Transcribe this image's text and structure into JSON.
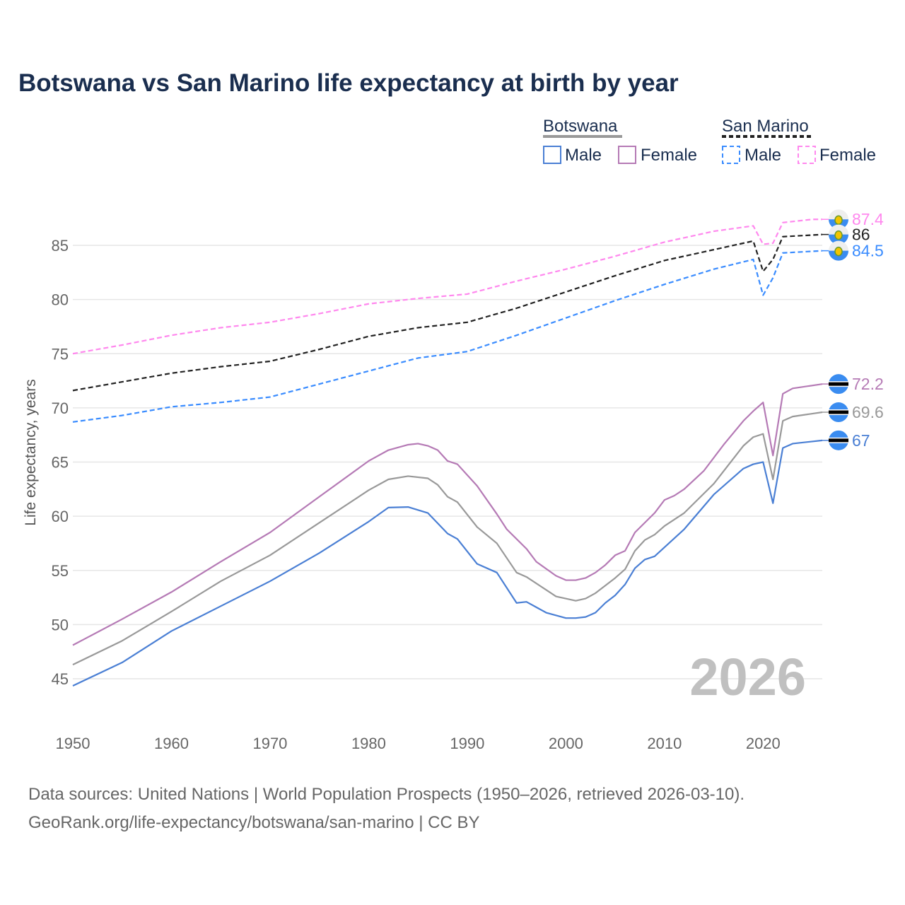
{
  "chart_data": {
    "type": "line",
    "title": "Botswana vs San Marino life expectancy at birth by year",
    "ylabel": "Life expectancy, years",
    "xlabel": "",
    "xlim": [
      1950,
      2026
    ],
    "ylim": [
      42,
      89
    ],
    "yticks": [
      45,
      50,
      55,
      60,
      65,
      70,
      75,
      80,
      85
    ],
    "xticks": [
      1950,
      1960,
      1970,
      1980,
      1990,
      2000,
      2010,
      2020
    ],
    "grid": true,
    "watermark_year": "2026",
    "legend": {
      "placement": "top-right",
      "groups": [
        {
          "name": "Botswana",
          "items": [
            "Male",
            "Female"
          ]
        },
        {
          "name": "San Marino",
          "items": [
            "Male",
            "Female"
          ]
        }
      ]
    },
    "series": [
      {
        "name": "San Marino Female",
        "color": "#ff88ee",
        "dash": true,
        "end_label": "87.4",
        "flag": "san-marino",
        "points": [
          [
            1950,
            75.0
          ],
          [
            1955,
            75.8
          ],
          [
            1960,
            76.7
          ],
          [
            1965,
            77.4
          ],
          [
            1970,
            77.9
          ],
          [
            1975,
            78.7
          ],
          [
            1980,
            79.6
          ],
          [
            1985,
            80.1
          ],
          [
            1990,
            80.5
          ],
          [
            1995,
            81.7
          ],
          [
            2000,
            82.8
          ],
          [
            2005,
            84.0
          ],
          [
            2010,
            85.3
          ],
          [
            2015,
            86.3
          ],
          [
            2019,
            86.8
          ],
          [
            2020,
            85.1
          ],
          [
            2021,
            85.2
          ],
          [
            2022,
            87.1
          ],
          [
            2025,
            87.4
          ],
          [
            2026,
            87.4
          ]
        ]
      },
      {
        "name": "San Marino",
        "color": "#222222",
        "dash": true,
        "end_label": "86",
        "flag": "san-marino",
        "points": [
          [
            1950,
            71.6
          ],
          [
            1955,
            72.4
          ],
          [
            1960,
            73.2
          ],
          [
            1965,
            73.8
          ],
          [
            1970,
            74.3
          ],
          [
            1975,
            75.4
          ],
          [
            1980,
            76.6
          ],
          [
            1985,
            77.4
          ],
          [
            1990,
            77.9
          ],
          [
            1995,
            79.2
          ],
          [
            2000,
            80.7
          ],
          [
            2005,
            82.2
          ],
          [
            2010,
            83.6
          ],
          [
            2015,
            84.6
          ],
          [
            2019,
            85.4
          ],
          [
            2020,
            82.6
          ],
          [
            2021,
            83.7
          ],
          [
            2022,
            85.8
          ],
          [
            2026,
            86.0
          ]
        ]
      },
      {
        "name": "San Marino Male",
        "color": "#3a8cff",
        "dash": true,
        "end_label": "84.5",
        "flag": "san-marino",
        "points": [
          [
            1950,
            68.7
          ],
          [
            1955,
            69.3
          ],
          [
            1960,
            70.1
          ],
          [
            1965,
            70.5
          ],
          [
            1970,
            71.0
          ],
          [
            1975,
            72.2
          ],
          [
            1980,
            73.4
          ],
          [
            1985,
            74.6
          ],
          [
            1990,
            75.2
          ],
          [
            1995,
            76.7
          ],
          [
            2000,
            78.3
          ],
          [
            2005,
            79.9
          ],
          [
            2010,
            81.4
          ],
          [
            2015,
            82.8
          ],
          [
            2019,
            83.7
          ],
          [
            2020,
            80.4
          ],
          [
            2021,
            82.0
          ],
          [
            2022,
            84.3
          ],
          [
            2026,
            84.5
          ]
        ]
      },
      {
        "name": "Botswana Female",
        "color": "#b57ab5",
        "dash": false,
        "end_label": "72.2",
        "flag": "botswana",
        "points": [
          [
            1950,
            48.1
          ],
          [
            1955,
            50.5
          ],
          [
            1960,
            53.0
          ],
          [
            1965,
            55.8
          ],
          [
            1970,
            58.5
          ],
          [
            1975,
            61.8
          ],
          [
            1980,
            65.1
          ],
          [
            1982,
            66.1
          ],
          [
            1984,
            66.6
          ],
          [
            1985,
            66.7
          ],
          [
            1986,
            66.5
          ],
          [
            1987,
            66.1
          ],
          [
            1988,
            65.1
          ],
          [
            1989,
            64.8
          ],
          [
            1991,
            62.8
          ],
          [
            1993,
            60.2
          ],
          [
            1994,
            58.8
          ],
          [
            1996,
            57.0
          ],
          [
            1997,
            55.8
          ],
          [
            1999,
            54.5
          ],
          [
            2000,
            54.1
          ],
          [
            2001,
            54.1
          ],
          [
            2002,
            54.3
          ],
          [
            2003,
            54.8
          ],
          [
            2004,
            55.5
          ],
          [
            2005,
            56.4
          ],
          [
            2006,
            56.8
          ],
          [
            2007,
            58.5
          ],
          [
            2009,
            60.3
          ],
          [
            2010,
            61.5
          ],
          [
            2011,
            61.9
          ],
          [
            2012,
            62.5
          ],
          [
            2014,
            64.2
          ],
          [
            2016,
            66.6
          ],
          [
            2018,
            68.8
          ],
          [
            2019,
            69.7
          ],
          [
            2020,
            70.5
          ],
          [
            2021,
            65.6
          ],
          [
            2022,
            71.3
          ],
          [
            2023,
            71.8
          ],
          [
            2026,
            72.2
          ]
        ]
      },
      {
        "name": "Botswana",
        "color": "#999999",
        "dash": false,
        "end_label": "69.6",
        "flag": "botswana",
        "points": [
          [
            1950,
            46.3
          ],
          [
            1955,
            48.5
          ],
          [
            1960,
            51.2
          ],
          [
            1965,
            54.0
          ],
          [
            1970,
            56.4
          ],
          [
            1975,
            59.4
          ],
          [
            1980,
            62.4
          ],
          [
            1982,
            63.4
          ],
          [
            1984,
            63.7
          ],
          [
            1986,
            63.5
          ],
          [
            1987,
            62.9
          ],
          [
            1988,
            61.8
          ],
          [
            1989,
            61.3
          ],
          [
            1991,
            59.0
          ],
          [
            1993,
            57.5
          ],
          [
            1995,
            54.8
          ],
          [
            1996,
            54.4
          ],
          [
            1998,
            53.2
          ],
          [
            1999,
            52.6
          ],
          [
            2001,
            52.2
          ],
          [
            2002,
            52.4
          ],
          [
            2003,
            52.9
          ],
          [
            2005,
            54.3
          ],
          [
            2006,
            55.1
          ],
          [
            2007,
            56.8
          ],
          [
            2008,
            57.8
          ],
          [
            2009,
            58.3
          ],
          [
            2010,
            59.1
          ],
          [
            2012,
            60.3
          ],
          [
            2015,
            63.0
          ],
          [
            2018,
            66.5
          ],
          [
            2019,
            67.3
          ],
          [
            2020,
            67.6
          ],
          [
            2021,
            63.4
          ],
          [
            2022,
            68.8
          ],
          [
            2023,
            69.2
          ],
          [
            2026,
            69.6
          ]
        ]
      },
      {
        "name": "Botswana Male",
        "color": "#4a7fd4",
        "dash": false,
        "end_label": "67",
        "flag": "botswana",
        "points": [
          [
            1950,
            44.35
          ],
          [
            1955,
            46.5
          ],
          [
            1960,
            49.4
          ],
          [
            1965,
            51.7
          ],
          [
            1970,
            54.0
          ],
          [
            1975,
            56.6
          ],
          [
            1980,
            59.5
          ],
          [
            1982,
            60.8
          ],
          [
            1984,
            60.85
          ],
          [
            1986,
            60.3
          ],
          [
            1988,
            58.4
          ],
          [
            1989,
            57.9
          ],
          [
            1991,
            55.6
          ],
          [
            1993,
            54.8
          ],
          [
            1995,
            52.0
          ],
          [
            1996,
            52.1
          ],
          [
            1998,
            51.1
          ],
          [
            2000,
            50.6
          ],
          [
            2001,
            50.6
          ],
          [
            2002,
            50.7
          ],
          [
            2003,
            51.1
          ],
          [
            2004,
            52.0
          ],
          [
            2005,
            52.7
          ],
          [
            2006,
            53.7
          ],
          [
            2007,
            55.2
          ],
          [
            2008,
            56.0
          ],
          [
            2009,
            56.3
          ],
          [
            2012,
            58.8
          ],
          [
            2015,
            62.0
          ],
          [
            2018,
            64.4
          ],
          [
            2019,
            64.8
          ],
          [
            2020,
            65.0
          ],
          [
            2021,
            61.2
          ],
          [
            2022,
            66.3
          ],
          [
            2023,
            66.7
          ],
          [
            2026,
            67.0
          ]
        ]
      }
    ]
  },
  "footer": {
    "line1": "Data sources: United Nations | World Population Prospects (1950–2026, retrieved 2026-03-10).",
    "line2": "GeoRank.org/life-expectancy/botswana/san-marino | CC BY"
  }
}
